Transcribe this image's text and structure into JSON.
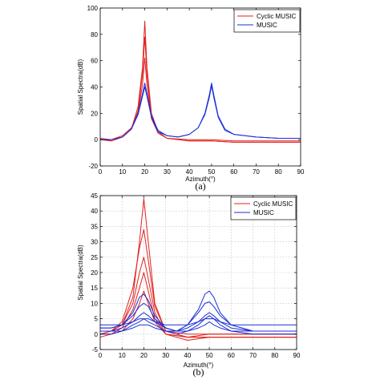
{
  "chart_data": [
    {
      "type": "line",
      "caption": "(a)",
      "xlabel": "Azimuth(°)",
      "ylabel": "Spatial Spectra(dB)",
      "xlim": [
        0,
        90
      ],
      "ylim": [
        -20,
        100
      ],
      "xticks": [
        0,
        10,
        20,
        30,
        40,
        50,
        60,
        70,
        80,
        90
      ],
      "yticks": [
        -20,
        0,
        20,
        40,
        60,
        80,
        100
      ],
      "grid": false,
      "legend_position": "top-right",
      "legend": [
        "Cyclic MUSIC",
        "MUSIC"
      ],
      "colors": {
        "Cyclic MUSIC": "#e0211f",
        "MUSIC": "#1a2fd6"
      },
      "series": [
        {
          "name": "Cyclic MUSIC",
          "x": [
            0,
            5,
            10,
            14,
            17,
            19,
            20,
            21,
            23,
            26,
            30,
            40,
            50,
            60,
            70,
            80,
            90
          ],
          "y": [
            0,
            -1,
            2,
            8,
            25,
            55,
            90,
            55,
            20,
            6,
            1,
            -1,
            -1,
            -2,
            -2,
            -2,
            -2
          ]
        },
        {
          "name": "Cyclic MUSIC",
          "x": [
            0,
            5,
            10,
            14,
            17,
            19,
            20,
            21,
            23,
            26,
            30,
            40,
            50,
            60,
            70,
            80,
            90
          ],
          "y": [
            0,
            -1,
            2,
            8,
            22,
            50,
            78,
            50,
            18,
            5,
            1,
            -1,
            -1,
            -2,
            -2,
            -2,
            -2
          ]
        },
        {
          "name": "Cyclic MUSIC",
          "x": [
            0,
            5,
            10,
            14,
            17,
            19,
            20,
            21,
            23,
            26,
            30,
            40,
            50,
            60,
            70,
            80,
            90
          ],
          "y": [
            1,
            0,
            3,
            9,
            20,
            42,
            62,
            42,
            16,
            5,
            1,
            0,
            0,
            -1,
            -1,
            -1,
            -1
          ]
        },
        {
          "name": "MUSIC",
          "x": [
            0,
            5,
            10,
            14,
            17,
            19,
            20,
            21,
            23,
            26,
            30,
            35,
            40,
            44,
            47,
            49,
            50,
            51,
            53,
            56,
            60,
            70,
            80,
            90
          ],
          "y": [
            0,
            0,
            2,
            8,
            20,
            35,
            43,
            35,
            18,
            7,
            3,
            2,
            4,
            9,
            20,
            34,
            43,
            34,
            18,
            8,
            4,
            2,
            1,
            1
          ]
        },
        {
          "name": "MUSIC",
          "x": [
            0,
            5,
            10,
            14,
            17,
            19,
            20,
            21,
            23,
            26,
            30,
            35,
            40,
            44,
            47,
            49,
            50,
            51,
            53,
            56,
            60,
            70,
            80,
            90
          ],
          "y": [
            0,
            0,
            2,
            8,
            19,
            33,
            40,
            33,
            17,
            6,
            3,
            2,
            4,
            9,
            19,
            32,
            41,
            32,
            17,
            7,
            4,
            2,
            1,
            1
          ]
        }
      ]
    },
    {
      "type": "line",
      "caption": "(b)",
      "xlabel": "Azimuth(°)",
      "ylabel": "Spatial Spectra(dB)",
      "xlim": [
        0,
        90
      ],
      "ylim": [
        -5,
        45
      ],
      "xticks": [
        0,
        10,
        20,
        30,
        40,
        50,
        60,
        70,
        80,
        90
      ],
      "yticks": [
        -5,
        0,
        5,
        10,
        15,
        20,
        25,
        30,
        35,
        40,
        45
      ],
      "grid": true,
      "legend_position": "top-right",
      "legend": [
        "Cyclic MUSIC",
        "MUSIC"
      ],
      "colors": {
        "Cyclic MUSIC": "#e0211f",
        "MUSIC": "#1a2fd6"
      },
      "series": [
        {
          "name": "Cyclic MUSIC",
          "x": [
            0,
            5,
            10,
            15,
            18,
            20,
            22,
            25,
            30,
            40,
            50,
            60,
            70,
            80,
            90
          ],
          "y": [
            0,
            1,
            3,
            12,
            30,
            44,
            30,
            10,
            1,
            -1,
            -1,
            -1,
            -1,
            -1,
            -1
          ]
        },
        {
          "name": "Cyclic MUSIC",
          "x": [
            0,
            5,
            10,
            15,
            18,
            20,
            22,
            25,
            30,
            40,
            50,
            60,
            70,
            80,
            90
          ],
          "y": [
            1,
            1,
            4,
            15,
            28,
            34,
            24,
            9,
            1,
            0,
            0,
            0,
            0,
            0,
            0
          ]
        },
        {
          "name": "Cyclic MUSIC",
          "x": [
            0,
            5,
            10,
            15,
            18,
            20,
            22,
            25,
            30,
            40,
            50,
            60,
            70,
            80,
            90
          ],
          "y": [
            0,
            1,
            3,
            10,
            20,
            25,
            18,
            7,
            0,
            -1,
            -1,
            -1,
            -1,
            -1,
            -1
          ]
        },
        {
          "name": "Cyclic MUSIC",
          "x": [
            0,
            5,
            10,
            15,
            18,
            20,
            22,
            25,
            30,
            40,
            50,
            60,
            70,
            80,
            90
          ],
          "y": [
            -1,
            0,
            2,
            8,
            15,
            20,
            14,
            5,
            0,
            -2,
            -1,
            -1,
            -1,
            -1,
            -1
          ]
        },
        {
          "name": "Cyclic MUSIC",
          "x": [
            0,
            5,
            10,
            15,
            18,
            20,
            22,
            25,
            30,
            40,
            50,
            60,
            70,
            80,
            90
          ],
          "y": [
            0,
            0,
            1,
            5,
            10,
            14,
            10,
            4,
            0,
            -1,
            0,
            0,
            0,
            0,
            0
          ]
        },
        {
          "name": "MUSIC",
          "x": [
            0,
            5,
            10,
            15,
            18,
            20,
            22,
            25,
            30,
            35,
            40,
            45,
            48,
            50,
            52,
            55,
            60,
            70,
            80,
            90
          ],
          "y": [
            2,
            2,
            3,
            7,
            12,
            13,
            11,
            6,
            2,
            1,
            3,
            8,
            13,
            14,
            12,
            7,
            3,
            1,
            1,
            1
          ]
        },
        {
          "name": "MUSIC",
          "x": [
            0,
            5,
            10,
            15,
            18,
            20,
            22,
            25,
            30,
            35,
            40,
            45,
            48,
            50,
            52,
            55,
            60,
            70,
            80,
            90
          ],
          "y": [
            2,
            2,
            3,
            6,
            9,
            10,
            9,
            5,
            2,
            1,
            3,
            7,
            10,
            10.5,
            9,
            6,
            3,
            1,
            1,
            1
          ]
        },
        {
          "name": "MUSIC",
          "x": [
            0,
            5,
            10,
            15,
            18,
            20,
            22,
            25,
            30,
            35,
            40,
            45,
            48,
            50,
            52,
            55,
            60,
            70,
            80,
            90
          ],
          "y": [
            1,
            1,
            2,
            4,
            6,
            7,
            6,
            4,
            2,
            1,
            2,
            4,
            6,
            7,
            6,
            4,
            2,
            1,
            1,
            1
          ]
        },
        {
          "name": "MUSIC",
          "x": [
            0,
            5,
            10,
            15,
            18,
            20,
            22,
            25,
            30,
            35,
            40,
            45,
            48,
            50,
            52,
            55,
            60,
            70,
            80,
            90
          ],
          "y": [
            3,
            3,
            3,
            4,
            5,
            5,
            5,
            4,
            3,
            3,
            3,
            4,
            5,
            5,
            5,
            4,
            3,
            3,
            3,
            3
          ]
        },
        {
          "name": "MUSIC",
          "x": [
            0,
            5,
            10,
            15,
            18,
            20,
            22,
            25,
            30,
            35,
            40,
            45,
            48,
            50,
            52,
            55,
            60,
            70,
            80,
            90
          ],
          "y": [
            1,
            1,
            1,
            2,
            3,
            3,
            3,
            2,
            1,
            1,
            1,
            2,
            3,
            4,
            3,
            2,
            1,
            1,
            1,
            1
          ]
        },
        {
          "name": "MUSIC",
          "x": [
            0,
            5,
            10,
            15,
            18,
            20,
            22,
            25,
            30,
            35,
            40,
            45,
            48,
            50,
            52,
            55,
            60,
            70,
            80,
            90
          ],
          "y": [
            0,
            0,
            1,
            3,
            4,
            5,
            4,
            3,
            1,
            0,
            1,
            3,
            5,
            6,
            5,
            3,
            1,
            0,
            0,
            0
          ]
        }
      ]
    }
  ]
}
